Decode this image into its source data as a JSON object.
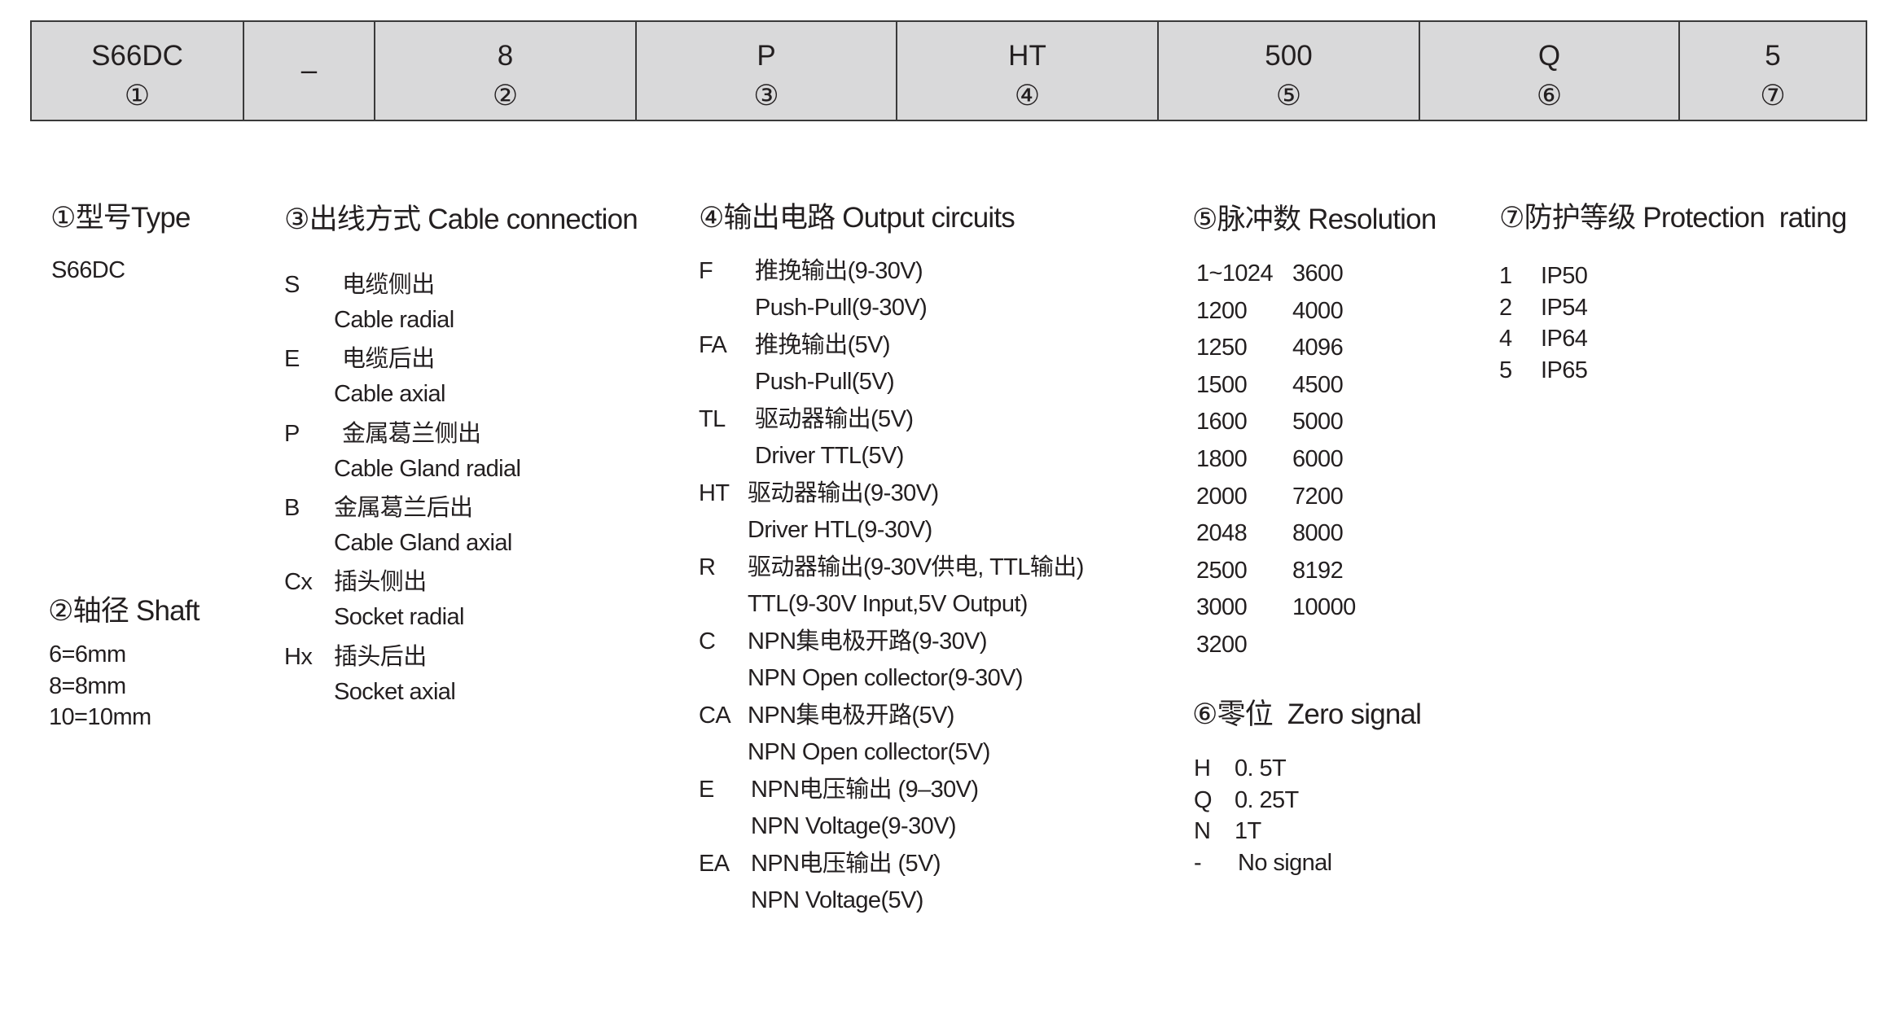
{
  "model_code": {
    "cells": [
      {
        "code": "S66DC",
        "index": "①"
      },
      {
        "code": "–"
      },
      {
        "code": "8",
        "index": "②"
      },
      {
        "code": "P",
        "index": "③"
      },
      {
        "code": "HT",
        "index": "④"
      },
      {
        "code": "500",
        "index": "⑤"
      },
      {
        "code": "Q",
        "index": "⑥"
      },
      {
        "code": "5",
        "index": "⑦"
      }
    ]
  },
  "sections": {
    "type": {
      "title": "①型号Type",
      "items": [
        "S66DC"
      ]
    },
    "shaft": {
      "title": "②轴径 Shaft",
      "items": [
        "6=6mm",
        "8=8mm",
        "10=10mm"
      ]
    },
    "cable_connection": {
      "title": "③出线方式 Cable connection",
      "items": [
        {
          "code": "S",
          "cn": "电缆侧出",
          "en": "Cable radial"
        },
        {
          "code": "E",
          "cn": "电缆后出",
          "en": "Cable axial"
        },
        {
          "code": "P",
          "cn": "金属葛兰侧出",
          "en": "Cable Gland radial"
        },
        {
          "code": "B",
          "cn": "金属葛兰后出",
          "en": "Cable Gland axial"
        },
        {
          "code": "Cx",
          "cn": "插头侧出",
          "en": "Socket radial"
        },
        {
          "code": "Hx",
          "cn": "插头后出",
          "en": "Socket axial"
        }
      ]
    },
    "output_circuits": {
      "title": "④输出电路 Output circuits",
      "items": [
        {
          "code": "F",
          "cn": "推挽输出(9-30V)",
          "en": "Push-Pull(9-30V)"
        },
        {
          "code": "FA",
          "cn": "推挽输出(5V)",
          "en": "Push-Pull(5V)"
        },
        {
          "code": "TL",
          "cn": "驱动器输出(5V)",
          "en": "Driver TTL(5V)"
        },
        {
          "code": "HT",
          "cn": "驱动器输出(9-30V)",
          "en": "Driver HTL(9-30V)"
        },
        {
          "code": "R",
          "cn": "驱动器输出(9-30V供电, TTL输出)",
          "en": "TTL(9-30V Input,5V Output)"
        },
        {
          "code": "C",
          "cn": "NPN集电极开路(9-30V)",
          "en": "NPN Open collector(9-30V)"
        },
        {
          "code": "CA",
          "cn": "NPN集电极开路(5V)",
          "en": "NPN Open collector(5V)"
        },
        {
          "code": "E",
          "cn": "NPN电压输出 (9–30V)",
          "en": "NPN Voltage(9-30V)"
        },
        {
          "code": "EA",
          "cn": "NPN电压输出 (5V)",
          "en": "NPN Voltage(5V)"
        }
      ]
    },
    "resolution": {
      "title": "⑤脉冲数 Resolution",
      "columns": [
        [
          "1~1024",
          "1200",
          "1250",
          "1500",
          "1600",
          "1800",
          "2000",
          "2048",
          "2500",
          "3000",
          "3200"
        ],
        [
          "3600",
          "4000",
          "4096",
          "4500",
          "5000",
          "6000",
          "7200",
          "8000",
          "8192",
          "10000"
        ]
      ]
    },
    "zero_signal": {
      "title": "⑥零位  Zero signal",
      "items": [
        {
          "code": "H",
          "label": "0. 5T"
        },
        {
          "code": "Q",
          "label": "0. 25T"
        },
        {
          "code": "N",
          "label": "1T"
        },
        {
          "code": "-",
          "label": "No signal"
        }
      ]
    },
    "protection_rating": {
      "title": "⑦防护等级 Protection  rating",
      "items": [
        {
          "code": "1",
          "label": "IP50"
        },
        {
          "code": "2",
          "label": "IP54"
        },
        {
          "code": "4",
          "label": "IP64"
        },
        {
          "code": "5",
          "label": "IP65"
        }
      ]
    }
  }
}
